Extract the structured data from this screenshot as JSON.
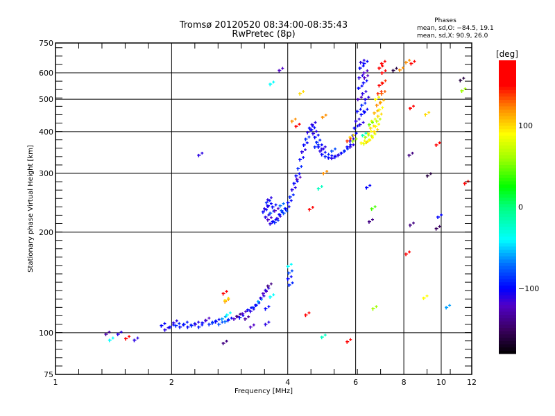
{
  "chart_data": {
    "type": "scatter",
    "title": "Tromsø 20120520 08:34:00-08:35:43",
    "subtitle": "RwPretec (8p)",
    "stats": {
      "heading": "Phases",
      "line_o": "mean, sd,O: −84.5, 19.1",
      "line_x": "mean, sd,X:  90.9, 26.0"
    },
    "xlabel": "Frequency [MHz]",
    "ylabel": "Stationary phase Virtual Height [km]",
    "xscale": "log",
    "yscale": "log",
    "xlim": [
      1,
      12
    ],
    "ylim": [
      75,
      737
    ],
    "grid": true,
    "xticks": [
      1,
      2,
      4,
      6,
      8,
      10,
      12
    ],
    "xtick_labels": [
      "1",
      "2",
      "4",
      "6",
      "8",
      "10",
      "12"
    ],
    "xgrid": [
      2,
      4,
      6,
      8,
      10
    ],
    "yticks": [
      75,
      100,
      200,
      300,
      400,
      500,
      600,
      750
    ],
    "ytick_labels": [
      "75",
      "100",
      "200",
      "300",
      "400",
      "500",
      "600",
      "750"
    ],
    "ygrid": [
      100,
      200,
      300,
      400,
      500,
      600
    ],
    "colorbar": {
      "label": "[deg]",
      "range": [
        -180,
        180
      ],
      "ticks": [
        100,
        0,
        -100
      ],
      "tick_labels": [
        "100",
        "0",
        "−100"
      ],
      "stops": [
        [
          -180,
          "#000000"
        ],
        [
          -150,
          "#3a0060"
        ],
        [
          -120,
          "#5000c8"
        ],
        [
          -100,
          "#0000ff"
        ],
        [
          -70,
          "#0070ff"
        ],
        [
          -40,
          "#00ffff"
        ],
        [
          0,
          "#00ff80"
        ],
        [
          25,
          "#00ff00"
        ],
        [
          60,
          "#a0ff00"
        ],
        [
          90,
          "#ffff00"
        ],
        [
          120,
          "#ff9000"
        ],
        [
          150,
          "#ff0000"
        ],
        [
          180,
          "#ff0000"
        ]
      ]
    },
    "point_fields": [
      "frequency_mhz",
      "height_km",
      "phase_deg"
    ],
    "points": [
      [
        1.35,
        99,
        -130
      ],
      [
        1.38,
        95,
        -40
      ],
      [
        1.45,
        99,
        -110
      ],
      [
        1.6,
        95,
        -110
      ],
      [
        1.52,
        96,
        170
      ],
      [
        1.92,
        102,
        -110
      ],
      [
        1.88,
        105,
        -100
      ],
      [
        1.98,
        104,
        -100
      ],
      [
        2.02,
        107,
        -110
      ],
      [
        2.05,
        105,
        -90
      ],
      [
        2.1,
        104,
        -100
      ],
      [
        2.15,
        106,
        -95
      ],
      [
        2.2,
        104,
        -100
      ],
      [
        2.25,
        105,
        -90
      ],
      [
        2.3,
        106,
        -110
      ],
      [
        2.35,
        104,
        -95
      ],
      [
        2.4,
        107,
        -100
      ],
      [
        2.45,
        109,
        -120
      ],
      [
        2.5,
        106,
        -90
      ],
      [
        2.55,
        107,
        -85
      ],
      [
        2.6,
        108,
        -100
      ],
      [
        2.65,
        106,
        -80
      ],
      [
        2.7,
        110,
        -60
      ],
      [
        2.75,
        108,
        -70
      ],
      [
        2.8,
        109,
        -100
      ],
      [
        2.9,
        110,
        -120
      ],
      [
        2.95,
        112,
        -140
      ],
      [
        3.0,
        111,
        -100
      ],
      [
        3.05,
        114,
        -120
      ],
      [
        3.1,
        110,
        -130
      ],
      [
        3.15,
        117,
        -100
      ],
      [
        3.2,
        116,
        -110
      ],
      [
        3.25,
        119,
        -90
      ],
      [
        3.3,
        121,
        -100
      ],
      [
        3.35,
        124,
        -60
      ],
      [
        3.4,
        127,
        -110
      ],
      [
        3.45,
        131,
        -120
      ],
      [
        3.5,
        134,
        -110
      ],
      [
        3.55,
        138,
        -140
      ],
      [
        3.6,
        128,
        -40
      ],
      [
        3.5,
        118,
        -100
      ],
      [
        2.75,
        124,
        120
      ],
      [
        2.72,
        131,
        150
      ],
      [
        2.75,
        125,
        100
      ],
      [
        2.78,
        113,
        -40
      ],
      [
        2.72,
        93,
        -140
      ],
      [
        3.5,
        106,
        -110
      ],
      [
        3.2,
        104,
        -120
      ],
      [
        4.0,
        158,
        -40
      ],
      [
        4.03,
        139,
        -90
      ],
      [
        4.0,
        145,
        -100
      ],
      [
        4.02,
        151,
        -80
      ],
      [
        4.45,
        113,
        160
      ],
      [
        4.9,
        97,
        -20
      ],
      [
        5.7,
        94,
        150
      ],
      [
        6.65,
        118,
        60
      ],
      [
        8.1,
        172,
        170
      ],
      [
        9.0,
        127,
        90
      ],
      [
        10.3,
        119,
        -60
      ],
      [
        2.35,
        340,
        -110
      ],
      [
        3.6,
        555,
        -40
      ],
      [
        3.8,
        610,
        -120
      ],
      [
        4.3,
        520,
        100
      ],
      [
        4.1,
        430,
        120
      ],
      [
        4.2,
        415,
        150
      ],
      [
        4.92,
        442,
        120
      ],
      [
        4.95,
        300,
        120
      ],
      [
        4.8,
        270,
        -20
      ],
      [
        6.4,
        272,
        -100
      ],
      [
        6.5,
        215,
        -140
      ],
      [
        6.6,
        235,
        40
      ],
      [
        8.3,
        210,
        -140
      ],
      [
        8.25,
        340,
        -140
      ],
      [
        8.3,
        470,
        160
      ],
      [
        8.35,
        640,
        160
      ],
      [
        9.2,
        295,
        -160
      ],
      [
        9.1,
        450,
        100
      ],
      [
        9.7,
        365,
        150
      ],
      [
        9.8,
        222,
        -100
      ],
      [
        9.7,
        205,
        -150
      ],
      [
        11.2,
        570,
        -160
      ],
      [
        11.3,
        530,
        60
      ],
      [
        11.5,
        280,
        160
      ],
      [
        7.5,
        610,
        -160
      ],
      [
        8.1,
        645,
        120
      ],
      [
        7.8,
        612,
        120
      ],
      [
        4.22,
        288,
        -120
      ],
      [
        4.55,
        234,
        150
      ],
      [
        3.45,
        230,
        -100
      ],
      [
        3.5,
        222,
        -110
      ],
      [
        3.55,
        218,
        -120
      ],
      [
        3.6,
        212,
        -110
      ],
      [
        3.65,
        215,
        -100
      ],
      [
        3.7,
        214,
        -90
      ],
      [
        3.75,
        220,
        -110
      ],
      [
        3.8,
        226,
        -100
      ],
      [
        3.85,
        232,
        -80
      ],
      [
        3.55,
        240,
        -100
      ],
      [
        3.48,
        235,
        -110
      ],
      [
        3.52,
        245,
        -90
      ],
      [
        3.6,
        228,
        -80
      ],
      [
        3.7,
        232,
        -120
      ],
      [
        3.82,
        240,
        -70
      ],
      [
        3.55,
        250,
        -110
      ],
      [
        3.65,
        238,
        -100
      ],
      [
        3.9,
        228,
        -80
      ],
      [
        3.95,
        235,
        -100
      ],
      [
        4.0,
        245,
        -100
      ],
      [
        4.05,
        255,
        -90
      ],
      [
        4.1,
        268,
        -110
      ],
      [
        4.15,
        280,
        -100
      ],
      [
        4.2,
        295,
        -100
      ],
      [
        4.25,
        310,
        -90
      ],
      [
        4.3,
        330,
        -100
      ],
      [
        4.35,
        348,
        -110
      ],
      [
        4.4,
        365,
        -100
      ],
      [
        4.45,
        380,
        -90
      ],
      [
        4.5,
        398,
        -110
      ],
      [
        4.55,
        410,
        -100
      ],
      [
        4.6,
        405,
        -100
      ],
      [
        4.65,
        395,
        -110
      ],
      [
        4.7,
        385,
        -100
      ],
      [
        4.75,
        372,
        -90
      ],
      [
        4.8,
        360,
        -100
      ],
      [
        4.85,
        350,
        -110
      ],
      [
        4.9,
        342,
        -100
      ],
      [
        5.0,
        337,
        -90
      ],
      [
        5.1,
        334,
        -100
      ],
      [
        5.2,
        333,
        -110
      ],
      [
        5.3,
        336,
        -100
      ],
      [
        5.4,
        340,
        -110
      ],
      [
        5.5,
        345,
        -100
      ],
      [
        5.6,
        350,
        -90
      ],
      [
        5.7,
        360,
        -100
      ],
      [
        5.8,
        375,
        -110
      ],
      [
        5.9,
        390,
        -100
      ],
      [
        5.95,
        410,
        -100
      ],
      [
        6.0,
        430,
        -110
      ],
      [
        6.05,
        460,
        -100
      ],
      [
        6.08,
        500,
        -120
      ],
      [
        6.1,
        540,
        -100
      ],
      [
        6.12,
        580,
        -110
      ],
      [
        6.15,
        620,
        -100
      ],
      [
        6.18,
        645,
        -110
      ],
      [
        6.3,
        640,
        -100
      ],
      [
        6.3,
        600,
        -120
      ],
      [
        6.28,
        560,
        -100
      ],
      [
        6.25,
        520,
        -110
      ],
      [
        6.22,
        480,
        -90
      ],
      [
        6.2,
        450,
        -100
      ],
      [
        6.15,
        420,
        -110
      ],
      [
        6.3,
        460,
        -100
      ],
      [
        6.35,
        500,
        -110
      ],
      [
        6.32,
        580,
        -120
      ],
      [
        4.7,
        360,
        -90
      ],
      [
        4.9,
        355,
        -110
      ],
      [
        5.2,
        350,
        -80
      ],
      [
        4.62,
        420,
        -110
      ],
      [
        5.8,
        360,
        -110
      ],
      [
        6.2,
        370,
        90
      ],
      [
        6.3,
        368,
        80
      ],
      [
        6.4,
        372,
        100
      ],
      [
        6.5,
        378,
        90
      ],
      [
        6.6,
        388,
        80
      ],
      [
        6.7,
        400,
        100
      ],
      [
        6.75,
        415,
        90
      ],
      [
        6.8,
        430,
        70
      ],
      [
        6.85,
        445,
        100
      ],
      [
        6.9,
        465,
        90
      ],
      [
        6.95,
        490,
        110
      ],
      [
        7.0,
        520,
        130
      ],
      [
        7.02,
        560,
        140
      ],
      [
        7.02,
        600,
        150
      ],
      [
        6.9,
        620,
        160
      ],
      [
        7.0,
        640,
        150
      ],
      [
        6.35,
        385,
        60
      ],
      [
        6.45,
        395,
        90
      ],
      [
        6.55,
        410,
        100
      ],
      [
        6.6,
        430,
        80
      ],
      [
        6.7,
        455,
        110
      ],
      [
        6.8,
        480,
        120
      ],
      [
        6.85,
        520,
        140
      ],
      [
        6.9,
        550,
        150
      ],
      [
        6.75,
        500,
        90
      ],
      [
        6.5,
        420,
        50
      ],
      [
        6.25,
        390,
        -20
      ],
      [
        5.8,
        385,
        100
      ],
      [
        5.7,
        375,
        140
      ],
      [
        5.9,
        375,
        60
      ]
    ]
  }
}
